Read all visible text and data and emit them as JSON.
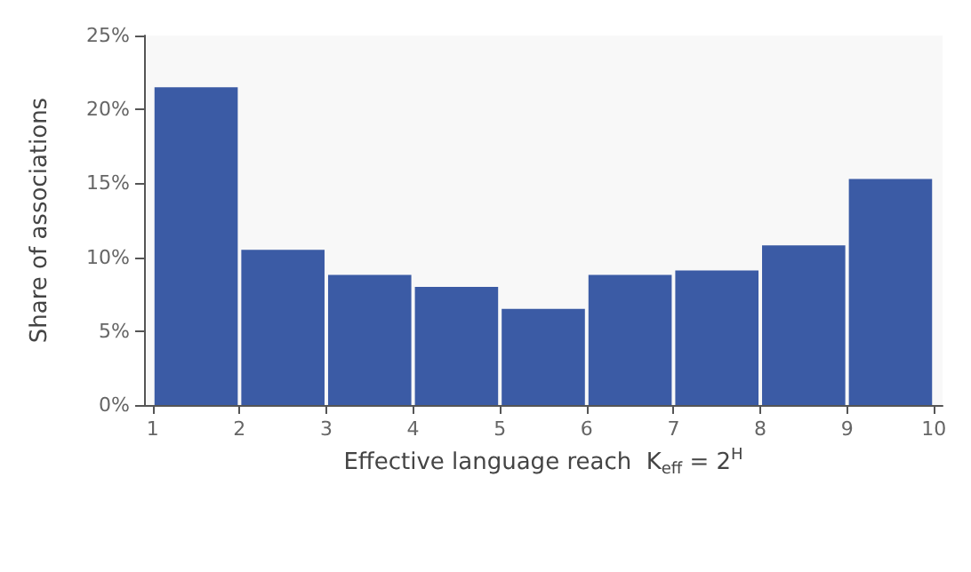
{
  "chart_data": {
    "type": "histogram",
    "xlabel": "Effective language reach  K$_{eff}$ = 2$^{H}$",
    "ylabel": "Share of associations",
    "bins": [
      1,
      2,
      3,
      4,
      5,
      6,
      7,
      8,
      9,
      10
    ],
    "values": [
      21.5,
      10.5,
      8.8,
      8.0,
      6.5,
      8.8,
      9.1,
      10.8,
      15.3
    ],
    "color": "#3b5ba5",
    "xlim": [
      0.9,
      10.1
    ],
    "xticks": [
      1,
      2,
      3,
      4,
      5,
      6,
      7,
      8,
      9,
      10
    ],
    "ylim": [
      0,
      25
    ],
    "yticks": [
      {
        "value": 0,
        "label": "0%"
      },
      {
        "value": 5,
        "label": "5%"
      },
      {
        "value": 10,
        "label": "10%"
      },
      {
        "value": 15,
        "label": "15%"
      },
      {
        "value": 20,
        "label": "20%"
      },
      {
        "value": 25,
        "label": "25%"
      }
    ],
    "grid": false
  }
}
